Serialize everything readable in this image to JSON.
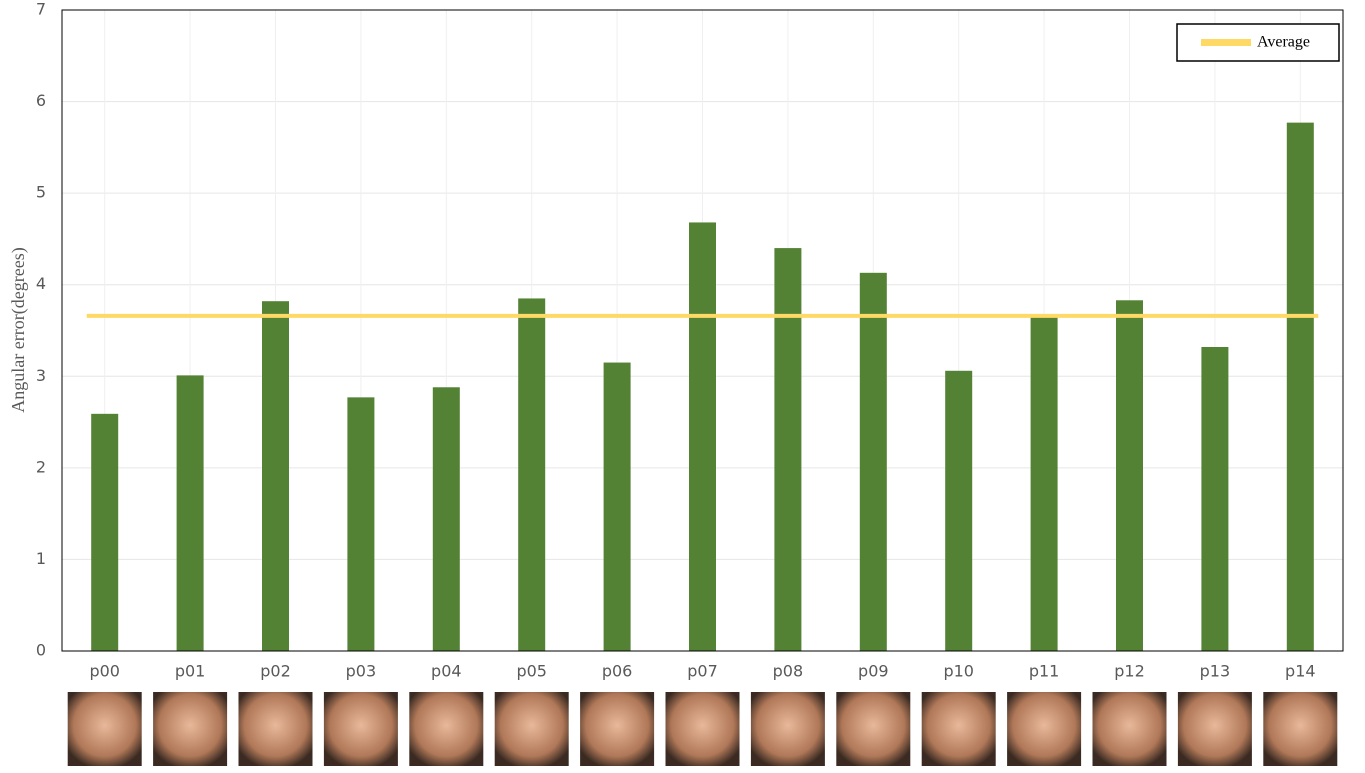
{
  "chart_data": {
    "type": "bar",
    "y_label": "Angular  error(degrees)",
    "categories": [
      "p00",
      "p01",
      "p02",
      "p03",
      "p04",
      "p05",
      "p06",
      "p07",
      "p08",
      "p09",
      "p10",
      "p11",
      "p12",
      "p13",
      "p14"
    ],
    "series": [
      {
        "color": "#548235",
        "values": [
          2.59,
          3.01,
          3.82,
          2.77,
          2.88,
          3.85,
          3.15,
          4.68,
          4.4,
          4.13,
          3.06,
          3.65,
          3.83,
          3.32,
          5.77
        ]
      }
    ],
    "average": {
      "name": "Average",
      "value": 3.66,
      "color": "#ffd966"
    },
    "ylim": [
      0,
      7
    ],
    "yticks": [
      0,
      1,
      2,
      3,
      4,
      5,
      6,
      7
    ],
    "grid": true,
    "legend": "upper right"
  }
}
